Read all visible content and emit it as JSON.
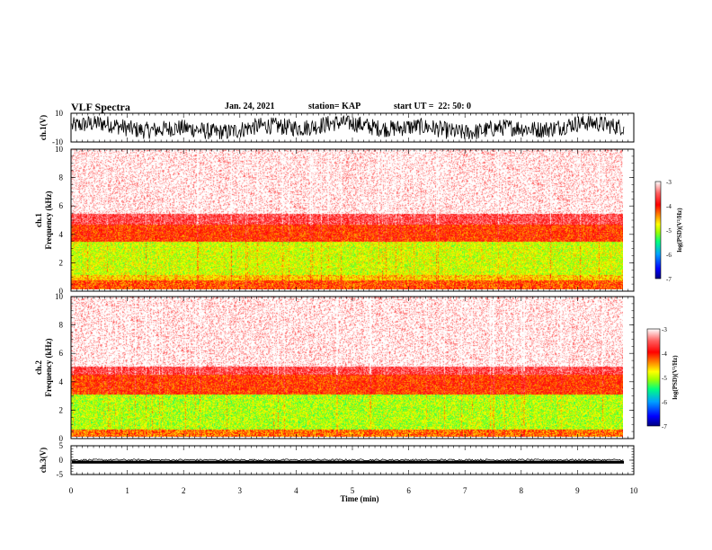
{
  "header": {
    "title": "VLF Spectra",
    "date": "Jan. 24, 2021",
    "station": "station= KAP",
    "start": "start UT =  22: 50: 0"
  },
  "colors": {
    "spectrogram_stops": [
      "#000080",
      "#0000ff",
      "#00a0ff",
      "#00ff80",
      "#a0ff00",
      "#ffff00",
      "#ff8000",
      "#ff0000",
      "#ff6060",
      "#ffffff"
    ],
    "trace": "#000000",
    "axis": "#000000"
  },
  "chart_data": [
    {
      "type": "line",
      "panel": "ch1-waveform",
      "ylabel": "ch.1(V)",
      "ylim": [
        -10,
        10
      ],
      "yticks": [
        "10",
        "-10"
      ],
      "xlim": [
        0,
        10
      ],
      "description_values": {
        "amplitude_range": [
          -8,
          8
        ]
      }
    },
    {
      "type": "heatmap",
      "panel": "ch1-spectrogram",
      "ylabel": "ch.1  Frequency (kHz)",
      "ylim": [
        0,
        10
      ],
      "yticks": [
        "0",
        "2",
        "4",
        "6",
        "8",
        "10"
      ],
      "xlim": [
        0,
        10
      ],
      "data_end_min": 9.83,
      "colorbar": {
        "label": "log(PSD)(V²/Hz)",
        "ticks": [
          "-3",
          "-4",
          "-5",
          "-6",
          "-7"
        ],
        "range": [
          -7,
          -3
        ]
      },
      "bands_khz": [
        {
          "from": 0.0,
          "to": 0.6,
          "level": -4.2
        },
        {
          "from": 0.6,
          "to": 1.0,
          "level": -4.6
        },
        {
          "from": 1.0,
          "to": 3.4,
          "level": -4.9
        },
        {
          "from": 3.4,
          "to": 4.6,
          "level": -4.1
        },
        {
          "from": 4.6,
          "to": 5.4,
          "level": -3.6
        },
        {
          "from": 5.4,
          "to": 10.0,
          "level": -3.1
        }
      ]
    },
    {
      "type": "heatmap",
      "panel": "ch2-spectrogram",
      "ylabel": "ch.2  Frequency (kHz)",
      "ylim": [
        0,
        10
      ],
      "yticks": [
        "0",
        "2",
        "4",
        "6",
        "8",
        "10"
      ],
      "xlim": [
        0,
        10
      ],
      "data_end_min": 9.83,
      "colorbar": {
        "label": "log(PSD)(V²/Hz)",
        "ticks": [
          "-3",
          "-4",
          "-5",
          "-6",
          "-7"
        ],
        "range": [
          -7,
          -3
        ]
      },
      "bands_khz": [
        {
          "from": 0.0,
          "to": 0.5,
          "level": -4.3
        },
        {
          "from": 0.5,
          "to": 3.0,
          "level": -5.0
        },
        {
          "from": 3.0,
          "to": 4.4,
          "level": -4.1
        },
        {
          "from": 4.4,
          "to": 5.0,
          "level": -3.6
        },
        {
          "from": 5.0,
          "to": 10.0,
          "level": -3.1
        }
      ]
    },
    {
      "type": "line",
      "panel": "ch3-waveform",
      "ylabel": "ch.3(V)",
      "ylim": [
        -5,
        5
      ],
      "yticks": [
        "5",
        "0",
        "-5"
      ],
      "xlim": [
        0,
        10
      ],
      "xticks": [
        "0",
        "1",
        "2",
        "3",
        "4",
        "5",
        "6",
        "7",
        "8",
        "9",
        "10"
      ],
      "xlabel": "Time (min)",
      "description_values": {
        "band": [
          -1.2,
          -0.2
        ]
      }
    }
  ]
}
